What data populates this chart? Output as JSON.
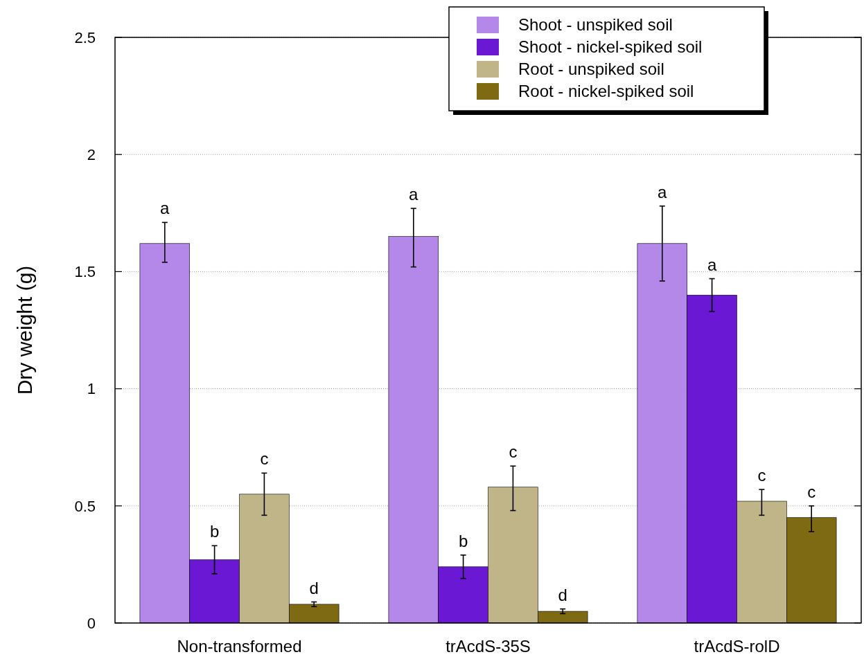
{
  "chart_data": {
    "type": "bar",
    "ylabel": "Dry weight (g)",
    "categories": [
      "Non-transformed",
      "trAcdS-35S",
      "trAcdS-rolD"
    ],
    "series": [
      {
        "name": "Shoot - unspiked soil",
        "color": "#b388e8",
        "values": [
          1.62,
          1.65,
          1.62
        ],
        "errors": [
          [
            1.54,
            1.71
          ],
          [
            1.52,
            1.77
          ],
          [
            1.46,
            1.78
          ]
        ]
      },
      {
        "name": "Shoot - nickel-spiked soil",
        "color": "#6a18d4",
        "values": [
          0.27,
          0.24,
          1.4
        ],
        "errors": [
          [
            0.21,
            0.33
          ],
          [
            0.19,
            0.29
          ],
          [
            1.33,
            1.47
          ]
        ]
      },
      {
        "name": "Root - unspiked soil",
        "color": "#c0b588",
        "values": [
          0.55,
          0.58,
          0.52
        ],
        "errors": [
          [
            0.46,
            0.64
          ],
          [
            0.48,
            0.67
          ],
          [
            0.46,
            0.57
          ]
        ]
      },
      {
        "name": "Root - nickel-spiked soil",
        "color": "#7f6a14",
        "values": [
          0.08,
          0.05,
          0.45
        ],
        "errors": [
          [
            0.07,
            0.09
          ],
          [
            0.04,
            0.06
          ],
          [
            0.39,
            0.5
          ]
        ]
      }
    ],
    "ylim": [
      0,
      2.5
    ],
    "yticks": [
      0,
      0.5,
      1,
      1.5,
      2,
      2.5
    ],
    "grid": "y",
    "legend": "top right",
    "annotations": [
      "a",
      "b",
      "c",
      "d",
      "a",
      "b",
      "c",
      "d",
      "a",
      "a",
      "c",
      "c"
    ]
  }
}
